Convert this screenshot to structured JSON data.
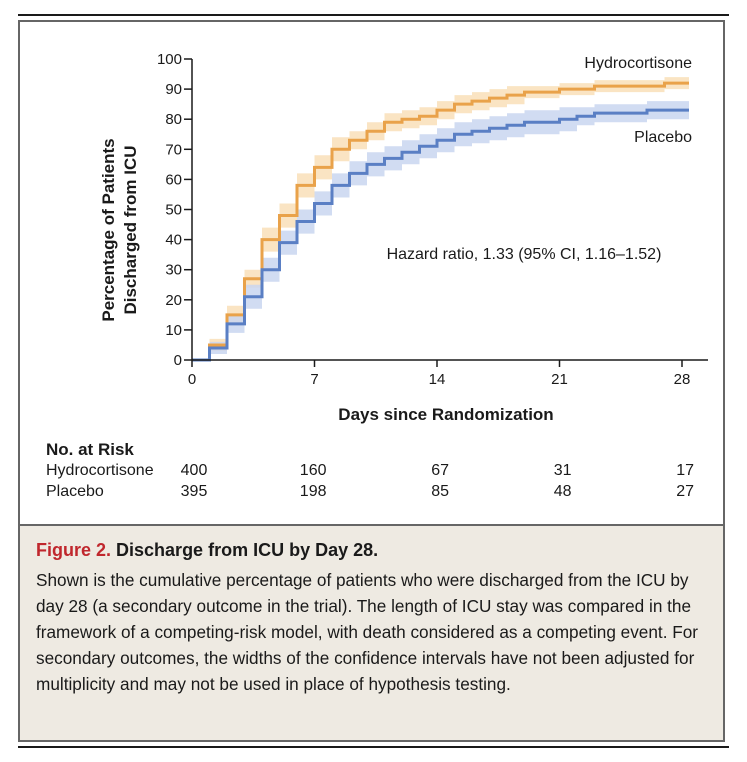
{
  "chart_data": {
    "type": "line",
    "subtype": "step",
    "ylabel": "Percentage of Patients Discharged from ICU",
    "xlabel": "Days since Randomization",
    "xlim": [
      0,
      28
    ],
    "ylim": [
      0,
      100
    ],
    "x_ticks": [
      0,
      7,
      14,
      21,
      28
    ],
    "y_ticks": [
      0,
      10,
      20,
      30,
      40,
      50,
      60,
      70,
      80,
      90,
      100
    ],
    "annotation": "Hazard ratio, 1.33 (95% CI, 1.16–1.52)",
    "series": [
      {
        "name": "Hydrocortisone",
        "color": "#e9a24a",
        "band_color": "#f9dfb8",
        "steps": [
          [
            0,
            0
          ],
          [
            1,
            5
          ],
          [
            2,
            15
          ],
          [
            3,
            27
          ],
          [
            4,
            40
          ],
          [
            5,
            48
          ],
          [
            6,
            58
          ],
          [
            7,
            64
          ],
          [
            8,
            70
          ],
          [
            9,
            73
          ],
          [
            10,
            76
          ],
          [
            11,
            79
          ],
          [
            12,
            80
          ],
          [
            13,
            81
          ],
          [
            14,
            83
          ],
          [
            15,
            85
          ],
          [
            16,
            86
          ],
          [
            17,
            87
          ],
          [
            18,
            88
          ],
          [
            19,
            89
          ],
          [
            20,
            89
          ],
          [
            21,
            90
          ],
          [
            22,
            90
          ],
          [
            23,
            91
          ],
          [
            24,
            91
          ],
          [
            25,
            91
          ],
          [
            26,
            91
          ],
          [
            27,
            92
          ],
          [
            28,
            92
          ]
        ],
        "ci_halfwidth": [
          0,
          2,
          3,
          3,
          4,
          4,
          4,
          4,
          4,
          3,
          3,
          3,
          3,
          3,
          3,
          3,
          3,
          3,
          3,
          2,
          2,
          2,
          2,
          2,
          2,
          2,
          2,
          2,
          2
        ]
      },
      {
        "name": "Placebo",
        "color": "#5a7fc4",
        "band_color": "#c9d6f0",
        "steps": [
          [
            0,
            0
          ],
          [
            1,
            4
          ],
          [
            2,
            12
          ],
          [
            3,
            21
          ],
          [
            4,
            30
          ],
          [
            5,
            39
          ],
          [
            6,
            46
          ],
          [
            7,
            52
          ],
          [
            8,
            58
          ],
          [
            9,
            62
          ],
          [
            10,
            65
          ],
          [
            11,
            67
          ],
          [
            12,
            69
          ],
          [
            13,
            71
          ],
          [
            14,
            73
          ],
          [
            15,
            75
          ],
          [
            16,
            76
          ],
          [
            17,
            77
          ],
          [
            18,
            78
          ],
          [
            19,
            79
          ],
          [
            20,
            79
          ],
          [
            21,
            80
          ],
          [
            22,
            81
          ],
          [
            23,
            82
          ],
          [
            24,
            82
          ],
          [
            25,
            82
          ],
          [
            26,
            83
          ],
          [
            27,
            83
          ],
          [
            28,
            83
          ]
        ],
        "ci_halfwidth": [
          0,
          2,
          3,
          4,
          4,
          4,
          4,
          4,
          4,
          4,
          4,
          4,
          4,
          4,
          4,
          4,
          4,
          4,
          4,
          4,
          4,
          4,
          3,
          3,
          3,
          3,
          3,
          3,
          3
        ]
      }
    ],
    "risk_table": {
      "title": "No. at Risk",
      "rows": [
        {
          "label": "Hydrocortisone",
          "values": [
            "400",
            "160",
            "67",
            "31",
            "17"
          ]
        },
        {
          "label": "Placebo",
          "values": [
            "395",
            "198",
            "85",
            "48",
            "27"
          ]
        }
      ]
    }
  },
  "caption": {
    "label": "Figure 2.",
    "title": "Discharge from ICU by Day 28.",
    "body": "Shown is the cumulative percentage of patients who were discharged from the ICU by day 28 (a secondary outcome in the trial). The length of ICU stay was compared in the framework of a competing-risk model, with death considered as a competing event. For secondary outcomes, the widths of the confidence intervals have not been adjusted for multiplicity and may not be used in place of hypothesis testing."
  }
}
